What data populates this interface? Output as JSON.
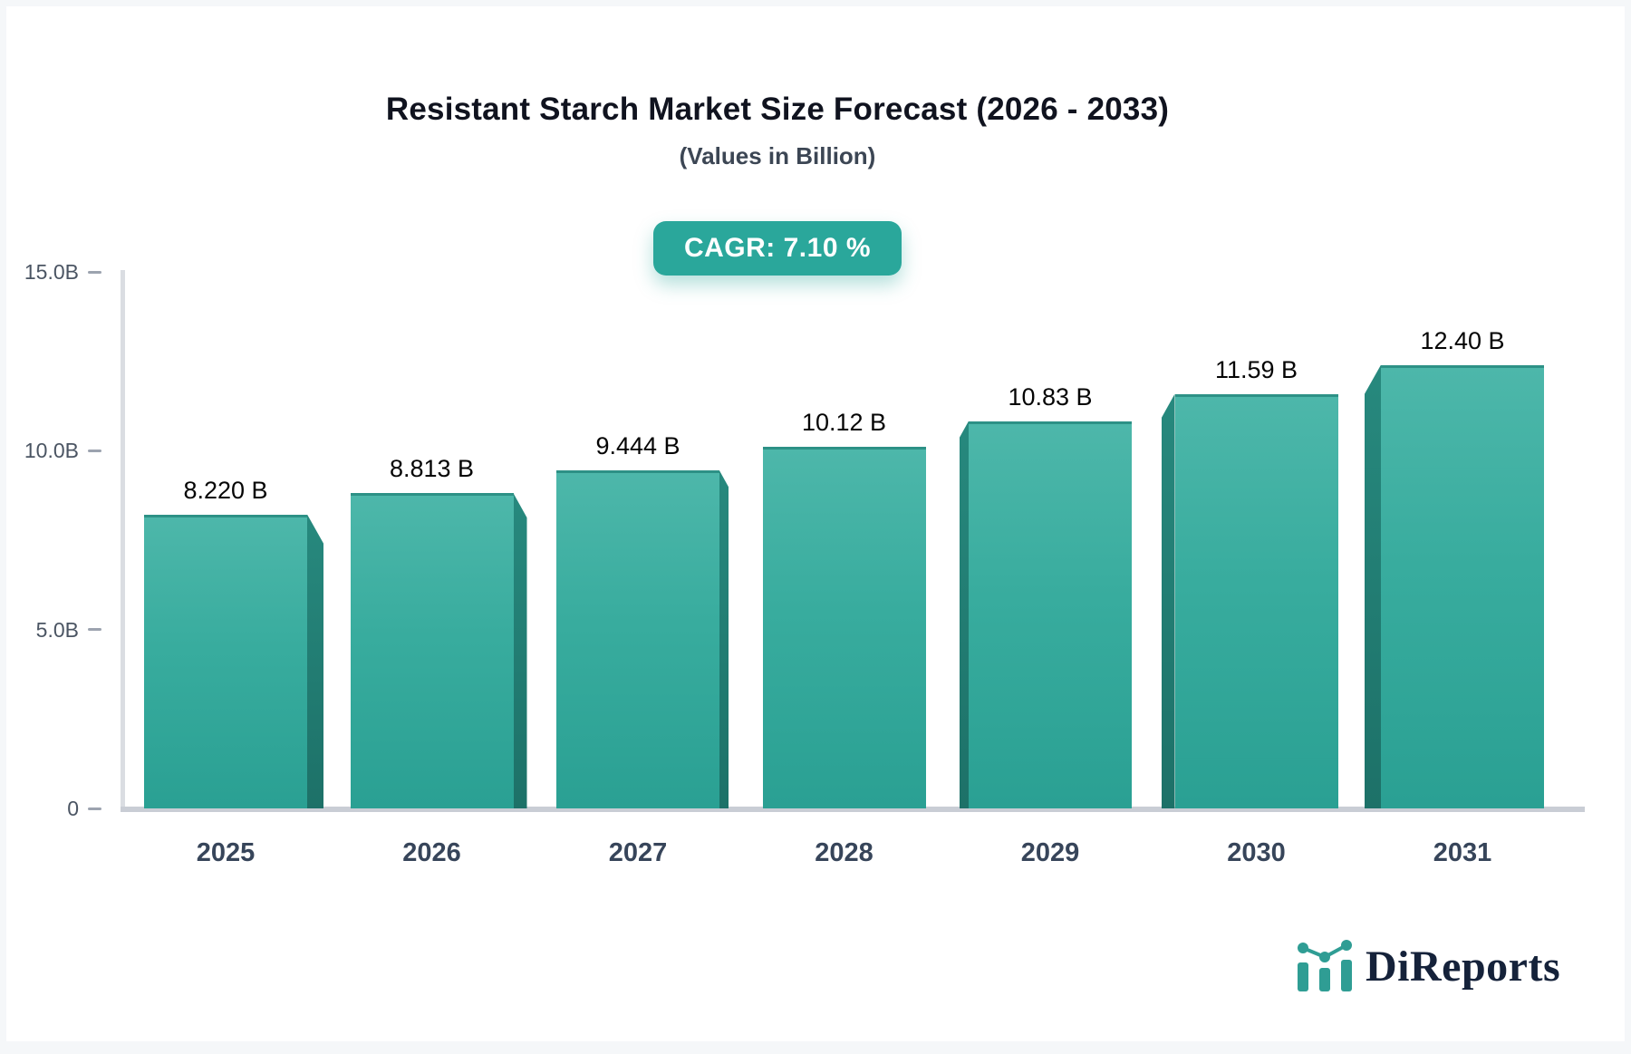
{
  "header": {
    "title": "Resistant Starch Market Size Forecast (2026 - 2033)",
    "subtitle": "(Values in Billion)",
    "cagr_label": "CAGR: 7.10 %"
  },
  "chart_data": {
    "type": "bar",
    "title": "Resistant Starch Market Size Forecast (2026 - 2033)",
    "subtitle": "(Values in Billion)",
    "unit": "Billion",
    "cagr": "7.10 %",
    "categories": [
      "2025",
      "2026",
      "2027",
      "2028",
      "2029",
      "2030",
      "2031"
    ],
    "values": [
      8.22,
      8.813,
      9.444,
      10.12,
      10.83,
      11.59,
      12.4
    ],
    "value_labels": [
      "8.220 B",
      "8.813 B",
      "9.444 B",
      "10.12 B",
      "10.83 B",
      "11.59 B",
      "12.40 B"
    ],
    "ylim": [
      0,
      15
    ],
    "yticks": [
      {
        "value": 0,
        "label": "0"
      },
      {
        "value": 5,
        "label": "5.0B"
      },
      {
        "value": 10,
        "label": "10.0B"
      },
      {
        "value": 15,
        "label": "15.0B"
      }
    ],
    "grid": false,
    "legend": false,
    "style_3d": true,
    "colors": {
      "bar_top": "#4db7aa",
      "bar_bottom": "#2aa093",
      "bar_side": "#1f8076",
      "badge": "#2aa79b",
      "axis": "#c9cdd5",
      "tick_text": "#4b5563",
      "category_text": "#37455a"
    }
  },
  "branding": {
    "logo_text": "DiReports",
    "logo_icon": "mini-bar-line-chart-icon",
    "logo_text_color": "#15223a",
    "logo_icon_color": "#2f9d94"
  }
}
